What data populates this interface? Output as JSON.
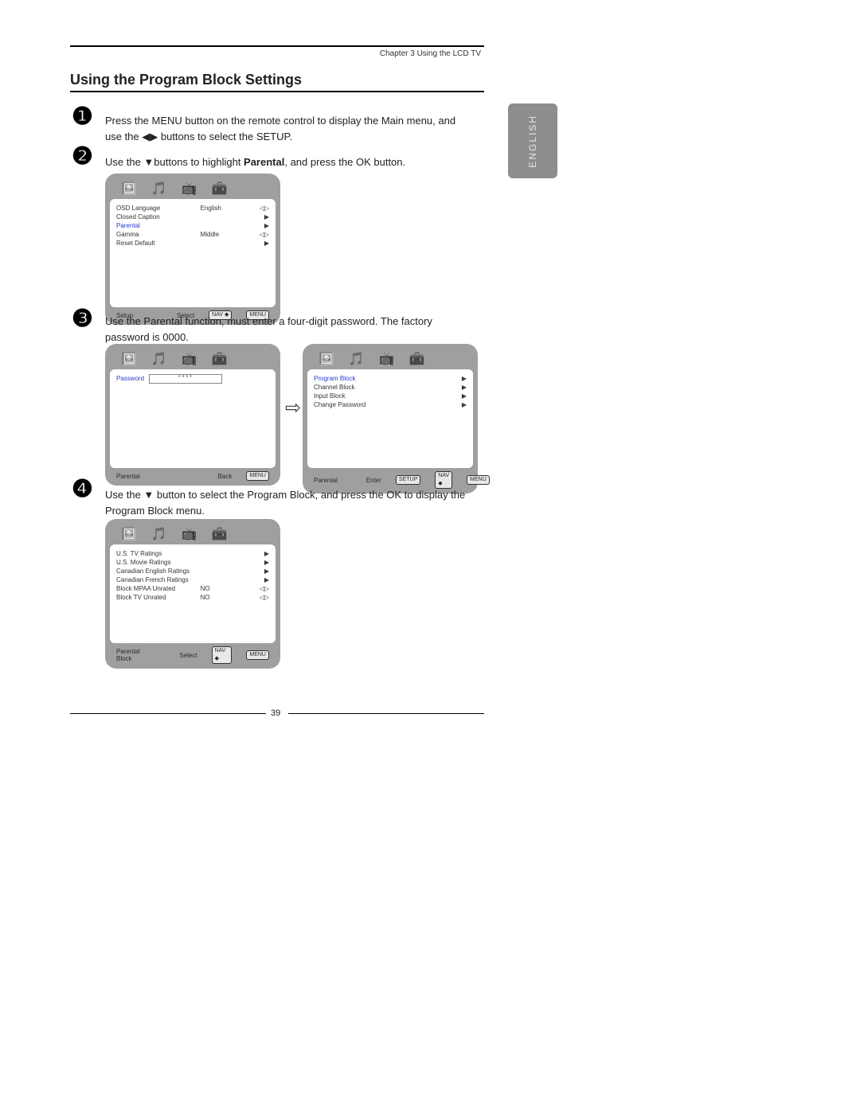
{
  "header": {
    "chapter": "Chapter 3 Using the LCD TV"
  },
  "tab": {
    "label": "ENGLISH"
  },
  "title": "Using the Program Block Settings",
  "steps": {
    "s1": {
      "num": "❶",
      "text1": "Press the ",
      "menu": "MENU",
      "text2": " button on the remote control to display the Main menu, and use the ◀▶ buttons to select the ",
      "setup": "SETUP",
      "text3": "."
    },
    "s2": {
      "num": "❷",
      "text1": "Use the ▼buttons to highlight ",
      "bold": "Parental",
      "text2": ", and press the ",
      "ok": "OK",
      "text3": " button."
    },
    "s3": {
      "num": "❸",
      "text1": "Use the ",
      "fn": "Parental",
      "text2": " function, must enter a four-digit password. The factory password is 0000."
    },
    "s4": {
      "num": "❹",
      "text1": "Use the ▼ button to select the ",
      "pb": "Program Block",
      "text2": ",  and press the ",
      "ok": "OK",
      "text3": " to display the Program Block menu."
    }
  },
  "osd1": {
    "rows": [
      {
        "l": "OSD Language",
        "v": "English",
        "sel": false
      },
      {
        "l": "Closed Caption",
        "v": "",
        "sel": false
      },
      {
        "l": "Parental",
        "v": "",
        "sel": true
      },
      {
        "l": "Gamma",
        "v": "Middle",
        "sel": false
      },
      {
        "l": "Reset Default",
        "v": "",
        "sel": false
      }
    ],
    "foot": {
      "left": "Setup",
      "mid": "Select",
      "b1": "NAV ◆",
      "b2": "MENU"
    }
  },
  "osd2": {
    "row": {
      "l": "Password"
    },
    "foot": {
      "left": "Parental",
      "mid": "Back",
      "b2": "MENU"
    }
  },
  "osd3": {
    "rows": [
      {
        "l": "Program Block",
        "sel": true
      },
      {
        "l": "Channel Block",
        "sel": false
      },
      {
        "l": "Input Block",
        "sel": false
      },
      {
        "l": "Change Password",
        "sel": false
      }
    ],
    "foot": {
      "left": "Parental",
      "mid": "Enter",
      "b0": "SETUP",
      "b1": "NAV ◆",
      "b2": "MENU"
    }
  },
  "osd4": {
    "rows": [
      {
        "l": "U.S. TV Ratings",
        "v": ""
      },
      {
        "l": "U.S. Movie Ratings",
        "v": ""
      },
      {
        "l": "Canadian English Ratings",
        "v": ""
      },
      {
        "l": "Canadian French Ratings",
        "v": ""
      },
      {
        "l": "Block MPAA Unrated",
        "v": "NO"
      },
      {
        "l": "Block TV Unrated",
        "v": "NO"
      }
    ],
    "foot": {
      "left": "Parental Block",
      "mid": "Select",
      "b1": "NAV ◆",
      "b2": "MENU"
    }
  },
  "pageNumber": "39"
}
